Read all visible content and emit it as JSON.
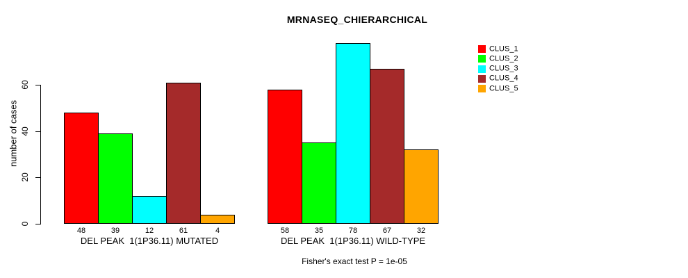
{
  "page": {
    "background": "#FFFFFF"
  },
  "chart_data": {
    "type": "bar",
    "title": "MRNASEQ_CHIERARCHICAL",
    "ylabel": "number of cases",
    "xlabel": "",
    "annotation": "Fisher's exact test P = 1e-05",
    "yticks": [
      0,
      20,
      40,
      60
    ],
    "ylim": [
      0,
      60
    ],
    "grid": false,
    "legend_position": "right",
    "bar_borders_color": "#000000",
    "categories": [
      "DEL PEAK  1(1P36.11) MUTATED",
      "DEL PEAK  1(1P36.11) WILD-TYPE"
    ],
    "series": [
      {
        "name": "CLUS_1",
        "color": "#FF0000",
        "values": [
          48,
          58
        ]
      },
      {
        "name": "CLUS_2",
        "color": "#00FF00",
        "values": [
          39,
          35
        ]
      },
      {
        "name": "CLUS_3",
        "color": "#00FFFF",
        "values": [
          12,
          78
        ]
      },
      {
        "name": "CLUS_4",
        "color": "#A52A2A",
        "values": [
          61,
          67
        ]
      },
      {
        "name": "CLUS_5",
        "color": "#FFA500",
        "values": [
          4,
          32
        ]
      }
    ]
  }
}
